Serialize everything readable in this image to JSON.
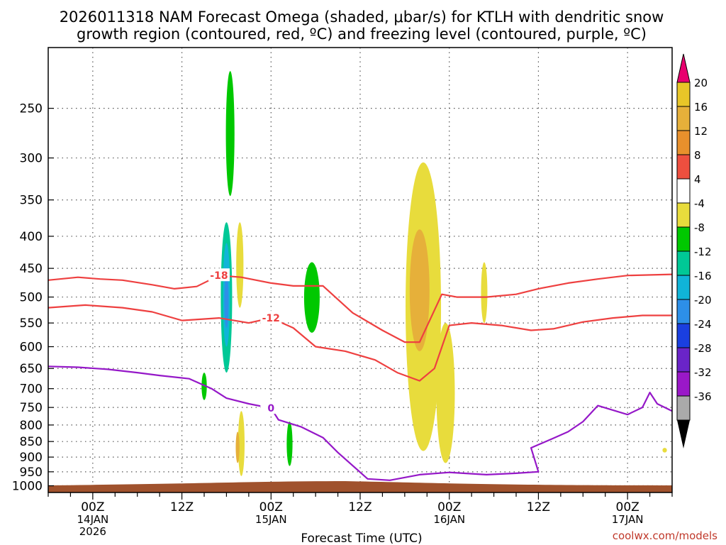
{
  "chart_data": {
    "type": "heatmap",
    "title_line1": "2026011318 NAM Forecast Omega (shaded, μbar/s) for KTLH with dendritic snow",
    "title_line2": "growth region (contoured, red, ºC) and freezing level (contoured, purple, ºC)",
    "xlabel": "Forecast Time (UTC)",
    "credit": "coolwx.com/models",
    "ylabel": "",
    "x_range_hours": [
      0,
      84
    ],
    "y_range_hpa": [
      1025,
      200
    ],
    "y_ticks": [
      250,
      300,
      350,
      400,
      450,
      500,
      550,
      600,
      650,
      700,
      750,
      800,
      850,
      900,
      950,
      1000
    ],
    "x_ticks": [
      {
        "hour": 6,
        "line1": "00Z",
        "line2": "14JAN",
        "line3": "2026"
      },
      {
        "hour": 18,
        "line1": "12Z",
        "line2": "",
        "line3": ""
      },
      {
        "hour": 30,
        "line1": "00Z",
        "line2": "15JAN",
        "line3": ""
      },
      {
        "hour": 42,
        "line1": "12Z",
        "line2": "",
        "line3": ""
      },
      {
        "hour": 54,
        "line1": "00Z",
        "line2": "16JAN",
        "line3": ""
      },
      {
        "hour": 66,
        "line1": "12Z",
        "line2": "",
        "line3": ""
      },
      {
        "hour": 78,
        "line1": "00Z",
        "line2": "17JAN",
        "line3": ""
      }
    ],
    "colorbar": {
      "labels": [
        "20",
        "16",
        "12",
        "8",
        "4",
        "-4",
        "-8",
        "-12",
        "-16",
        "-20",
        "-24",
        "-28",
        "-32",
        "-36"
      ],
      "colors": [
        "#e8c628",
        "#e6b03a",
        "#e8902c",
        "#ee4f3f",
        "#ffffff",
        "#e8dc3c",
        "#00c800",
        "#00c896",
        "#10b4d8",
        "#2d8fe8",
        "#1a3fe0",
        "#6a24c8",
        "#9a18c8",
        "#aaaaaa"
      ],
      "top_arrow_color": "#e8006e",
      "bottom_arrow_color": "#000000"
    },
    "omega_features": [
      {
        "name": "green-streak-upper",
        "hour": 24.5,
        "p_top": 218,
        "p_bottom": 345,
        "value": -6
      },
      {
        "name": "green-streak-mid",
        "hour": 24.0,
        "p_top": 380,
        "p_bottom": 660,
        "value": -8
      },
      {
        "name": "teal-core",
        "hour": 24.0,
        "p_top": 410,
        "p_bottom": 600,
        "value": -12
      },
      {
        "name": "blue-core",
        "hour": 24.0,
        "p_top": 460,
        "p_bottom": 560,
        "value": -18
      },
      {
        "name": "yellow-streak-a",
        "hour": 25.8,
        "p_top": 380,
        "p_bottom": 520,
        "value": 5
      },
      {
        "name": "green-lens",
        "hour": 35.5,
        "p_top": 440,
        "p_bottom": 570,
        "value": -6
      },
      {
        "name": "yellow-main-column",
        "hour": 50.5,
        "p_top": 305,
        "p_bottom": 880,
        "value": 6
      },
      {
        "name": "orange-core",
        "hour": 50.0,
        "p_top": 390,
        "p_bottom": 610,
        "value": 10
      },
      {
        "name": "yellow-lower-branch",
        "hour": 53.5,
        "p_top": 550,
        "p_bottom": 920,
        "value": 6
      },
      {
        "name": "yellow-streak-b",
        "hour": 58.7,
        "p_top": 440,
        "p_bottom": 550,
        "value": 5
      },
      {
        "name": "green-low-1",
        "hour": 21.0,
        "p_top": 660,
        "p_bottom": 730,
        "value": -6
      },
      {
        "name": "green-low-2",
        "hour": 32.5,
        "p_top": 790,
        "p_bottom": 930,
        "value": -6
      },
      {
        "name": "yellow-low",
        "hour": 26.0,
        "p_top": 760,
        "p_bottom": 965,
        "value": 6
      },
      {
        "name": "orange-low",
        "hour": 25.5,
        "p_top": 820,
        "p_bottom": 920,
        "value": 10
      },
      {
        "name": "yellow-blob-right",
        "hour": 83.0,
        "p_top": 870,
        "p_bottom": 885,
        "value": 5
      }
    ],
    "contours": [
      {
        "name": "minus-18-isotherm",
        "color": "#ee4040",
        "label": "-18",
        "hours": [
          0,
          4,
          7,
          10,
          14,
          17,
          20,
          23,
          26,
          30,
          33,
          37,
          41,
          45,
          48,
          50,
          53,
          55,
          59,
          63,
          66,
          70,
          74,
          78,
          84
        ],
        "pressures": [
          470,
          465,
          468,
          470,
          478,
          485,
          481,
          462,
          465,
          475,
          480,
          480,
          530,
          565,
          590,
          590,
          495,
          500,
          500,
          495,
          485,
          475,
          468,
          462,
          460
        ]
      },
      {
        "name": "minus-12-isotherm",
        "color": "#ee4040",
        "label": "-12",
        "hours": [
          0,
          5,
          10,
          14,
          18,
          23,
          27,
          30,
          33,
          36,
          40,
          44,
          47,
          50,
          52,
          54,
          57,
          61,
          65,
          68,
          72,
          76,
          80,
          84
        ],
        "pressures": [
          520,
          515,
          520,
          528,
          545,
          540,
          550,
          540,
          560,
          600,
          610,
          630,
          660,
          680,
          650,
          555,
          550,
          555,
          565,
          562,
          548,
          540,
          535,
          535
        ]
      },
      {
        "name": "zero-isotherm",
        "color": "#9518c8",
        "label": "0",
        "hours": [
          0,
          4,
          8,
          12,
          15,
          19,
          22,
          24,
          27,
          30,
          31,
          34,
          37,
          39,
          43,
          46,
          50,
          54,
          59,
          63,
          66,
          65,
          68,
          70,
          72,
          74,
          78,
          80,
          81,
          82,
          84
        ],
        "pressures": [
          645,
          647,
          652,
          660,
          667,
          675,
          700,
          725,
          740,
          752,
          785,
          805,
          838,
          885,
          975,
          980,
          960,
          952,
          960,
          955,
          950,
          870,
          840,
          820,
          790,
          745,
          770,
          750,
          710,
          740,
          760
        ]
      }
    ],
    "terrain_color": "#a0522d"
  }
}
